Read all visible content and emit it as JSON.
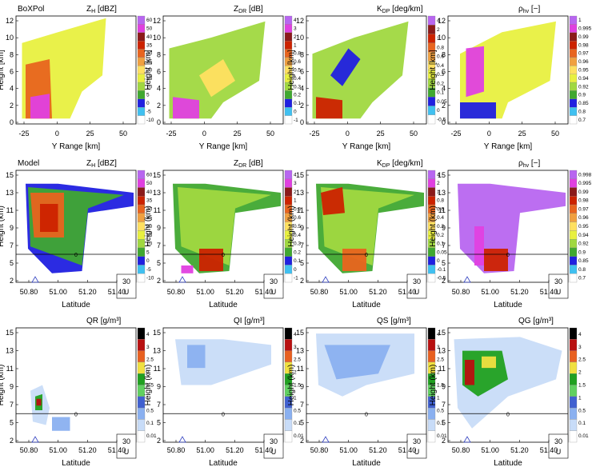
{
  "figure": {
    "rows": [
      {
        "id": "boxpol",
        "row_label": "BoXPol",
        "y_label": "Height [km]",
        "x_label": "Y Range [km]",
        "y_ticks": [
          "0",
          "2",
          "4",
          "6",
          "8",
          "10",
          "12"
        ],
        "x_ticks": [
          "-25",
          "0",
          "25",
          "50"
        ],
        "panels": [
          {
            "title": "Z_H [dBZ]",
            "ticks": [
              "60",
              "50",
              "40",
              "35",
              "30",
              "25",
              "20",
              "15",
              "10",
              "5",
              "0",
              "-5",
              "-10"
            ],
            "colors": [
              "#b866f0",
              "#e040e0",
              "#8b1a1a",
              "#cc2200",
              "#e8641e",
              "#f0a040",
              "#ffe060",
              "#e8f040",
              "#a0d840",
              "#40a830",
              "#2020e0",
              "#40c0f0",
              "#ffffff"
            ]
          },
          {
            "title": "Z_DR [dB]",
            "ticks": [
              "4",
              "3",
              "2",
              "1",
              "0.8",
              "0.6",
              "0.5",
              "0.4",
              "0.3",
              "0.2",
              "0.1",
              "0",
              "-1"
            ],
            "colors": [
              "#b866f0",
              "#e040e0",
              "#8b1a1a",
              "#cc2200",
              "#e8641e",
              "#f0a040",
              "#ffe060",
              "#e8f040",
              "#a0d840",
              "#40a830",
              "#2020e0",
              "#40c0f0",
              "#ffffff"
            ]
          },
          {
            "title": "K_DP [deg/km]",
            "ticks": [
              "4",
              "2",
              "1",
              "0.8",
              "0.6",
              "0.4",
              "0.3",
              "0.2",
              "0.1",
              "0.05",
              "0",
              "-0.5"
            ],
            "colors": [
              "#b866f0",
              "#8b1a1a",
              "#cc2200",
              "#e8641e",
              "#f0a040",
              "#ffe060",
              "#e8f040",
              "#a0d840",
              "#40a830",
              "#2020e0",
              "#40c0f0",
              "#ffffff"
            ]
          },
          {
            "title": "ρ_hv [−]",
            "ticks": [
              "1",
              "0.995",
              "0.99",
              "0.98",
              "0.97",
              "0.96",
              "0.95",
              "0.94",
              "0.92",
              "0.9",
              "0.85",
              "0.8",
              "0.7"
            ],
            "colors": [
              "#b866f0",
              "#e040e0",
              "#8b1a1a",
              "#cc2200",
              "#e8641e",
              "#f0a040",
              "#ffe060",
              "#e8f040",
              "#a0d840",
              "#40a830",
              "#2020e0",
              "#40c0f0",
              "#ffffff"
            ]
          }
        ]
      },
      {
        "id": "model",
        "row_label": "Model",
        "y_label": "Height (km)",
        "x_label": "Latitude",
        "y_ticks": [
          "2",
          "5",
          "7",
          "9",
          "11",
          "13",
          "15"
        ],
        "x_ticks": [
          "50.80",
          "51.00",
          "51.20",
          "51.40"
        ],
        "contour_label": "0",
        "wind_label": "30",
        "wind_unit": "U",
        "panels": [
          {
            "title": "Z_H [dBZ]",
            "ticks": [
              "60",
              "50",
              "40",
              "35",
              "30",
              "25",
              "20",
              "15",
              "10",
              "5",
              "0",
              "-5",
              "-10"
            ],
            "colors": [
              "#b866f0",
              "#e040e0",
              "#8b1a1a",
              "#cc2200",
              "#e8641e",
              "#f0a040",
              "#ffe060",
              "#e8f040",
              "#a0d840",
              "#40a830",
              "#2020e0",
              "#40c0f0",
              "#ffffff"
            ]
          },
          {
            "title": "Z_DR [dB]",
            "ticks": [
              "4",
              "3",
              "2",
              "1",
              "0.8",
              "0.6",
              "0.5",
              "0.4",
              "0.3",
              "0.2",
              "0.1",
              "0",
              "-1"
            ],
            "colors": [
              "#b866f0",
              "#e040e0",
              "#8b1a1a",
              "#cc2200",
              "#e8641e",
              "#f0a040",
              "#ffe060",
              "#e8f040",
              "#a0d840",
              "#40a830",
              "#2020e0",
              "#40c0f0",
              "#ffffff"
            ]
          },
          {
            "title": "K_DP [deg/km]",
            "ticks": [
              "4",
              "2",
              "1",
              "0.8",
              "0.6",
              "0.4",
              "0.3",
              "0.2",
              "0.1",
              "0.05",
              "0",
              "-0.1",
              "-0.5"
            ],
            "colors": [
              "#b866f0",
              "#e040e0",
              "#8b1a1a",
              "#cc2200",
              "#e8641e",
              "#f0a040",
              "#ffe060",
              "#e8f040",
              "#a0d840",
              "#40a830",
              "#2020e0",
              "#40c0f0",
              "#ffffff"
            ]
          },
          {
            "title": "ρ_hv [−]",
            "ticks": [
              "0.998",
              "0.995",
              "0.99",
              "0.98",
              "0.97",
              "0.96",
              "0.95",
              "0.94",
              "0.92",
              "0.9",
              "0.85",
              "0.8",
              "0.7"
            ],
            "colors": [
              "#b866f0",
              "#e040e0",
              "#8b1a1a",
              "#cc2200",
              "#e8641e",
              "#f0a040",
              "#ffe060",
              "#e8f040",
              "#a0d840",
              "#40a830",
              "#2020e0",
              "#40c0f0",
              "#ffffff"
            ]
          }
        ]
      },
      {
        "id": "hydro",
        "row_label": "",
        "y_label": "Height (km)",
        "x_label": "Latitude",
        "y_ticks": [
          "2",
          "5",
          "7",
          "9",
          "11",
          "13",
          "15"
        ],
        "x_ticks": [
          "50.80",
          "51.00",
          "51.20",
          "51.40"
        ],
        "contour_label": "0",
        "wind_label": "30",
        "wind_unit": "U",
        "panels": [
          {
            "title": "QR [g/m³]",
            "ticks": [
              "4",
              "3",
              "2.5",
              "2",
              "1.5",
              "1",
              "0.5",
              "0.1",
              "0.01"
            ],
            "colors": [
              "#000000",
              "#b81010",
              "#e86020",
              "#f0e040",
              "#20a020",
              "#60d060",
              "#4060d0",
              "#8ab0f0",
              "#c8dcf8",
              "#ffffff"
            ]
          },
          {
            "title": "QI [g/m³]",
            "ticks": [
              "4",
              "3",
              "2.5",
              "2",
              "1.5",
              "1",
              "0.5",
              "0.1",
              "0.01"
            ],
            "colors": [
              "#000000",
              "#b81010",
              "#e86020",
              "#f0e040",
              "#20a020",
              "#60d060",
              "#4060d0",
              "#8ab0f0",
              "#c8dcf8",
              "#ffffff"
            ]
          },
          {
            "title": "QS [g/m³]",
            "ticks": [
              "4",
              "3",
              "2.5",
              "2",
              "1.5",
              "1",
              "0.5",
              "0.1",
              "0.01"
            ],
            "colors": [
              "#000000",
              "#b81010",
              "#e86020",
              "#f0e040",
              "#20a020",
              "#60d060",
              "#4060d0",
              "#8ab0f0",
              "#c8dcf8",
              "#ffffff"
            ]
          },
          {
            "title": "QG [g/m³]",
            "ticks": [
              "4",
              "3",
              "2.5",
              "2",
              "1.5",
              "1",
              "0.5",
              "0.1",
              "0.01"
            ],
            "colors": [
              "#000000",
              "#b81010",
              "#e86020",
              "#f0e040",
              "#20a020",
              "#60d060",
              "#4060d0",
              "#8ab0f0",
              "#c8dcf8",
              "#ffffff"
            ]
          }
        ]
      }
    ]
  }
}
